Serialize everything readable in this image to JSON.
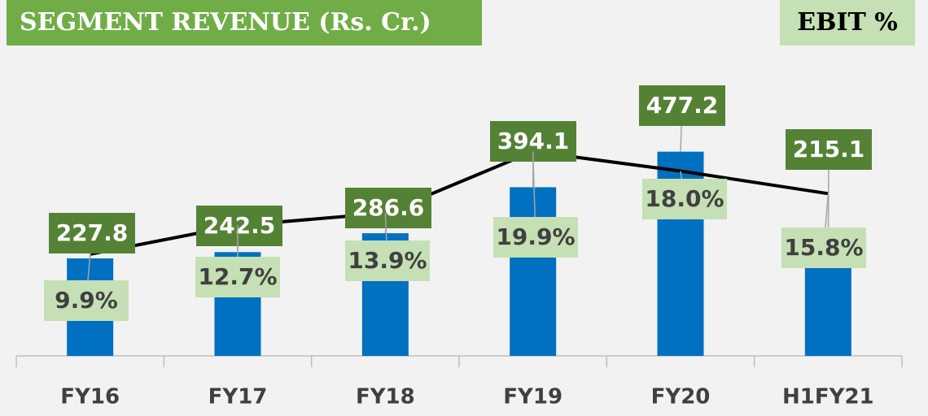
{
  "chart_data": {
    "type": "bar",
    "categories": [
      "FY16",
      "FY17",
      "FY18",
      "FY19",
      "FY20",
      "H1FY21"
    ],
    "series": [
      {
        "name": "SEGMENT REVENUE (Rs. Cr.)",
        "type": "bar",
        "color": "#0070c0",
        "values": [
          227.8,
          242.5,
          286.6,
          394.1,
          477.2,
          215.1
        ]
      },
      {
        "name": "EBIT %",
        "type": "line",
        "axis": "y2",
        "color": "#000000",
        "values": [
          9.9,
          12.7,
          13.9,
          19.9,
          18.0,
          15.8
        ],
        "value_labels": [
          "9.9%",
          "12.7%",
          "13.9%",
          "19.9%",
          "18.0%",
          "15.8%"
        ]
      }
    ],
    "ylim": [
      0,
      600
    ],
    "y2lim": [
      0,
      25
    ]
  }
}
